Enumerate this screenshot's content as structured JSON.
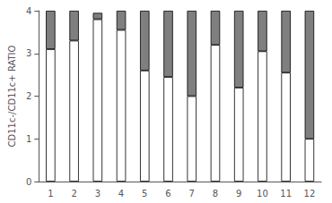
{
  "chart_data": {
    "type": "bar",
    "stacked": true,
    "ylabel": "CD11c-/CD11c+ RATIO",
    "categories": [
      "1",
      "2",
      "3",
      "4",
      "5",
      "6",
      "7",
      "8",
      "9",
      "10",
      "11",
      "12"
    ],
    "series": [
      {
        "color": "#ffffff",
        "values": [
          3.1,
          3.3,
          3.8,
          3.55,
          2.6,
          2.45,
          2.0,
          3.2,
          2.2,
          3.05,
          2.55,
          1.0
        ]
      },
      {
        "color": "#7f7f7f",
        "values": [
          0.9,
          0.7,
          0.15,
          0.45,
          1.4,
          1.55,
          2.0,
          0.8,
          1.8,
          0.95,
          1.45,
          3.0
        ]
      }
    ],
    "ylim": [
      0,
      4
    ],
    "yticks": [
      0,
      1,
      2,
      3,
      4
    ],
    "grid": false
  }
}
